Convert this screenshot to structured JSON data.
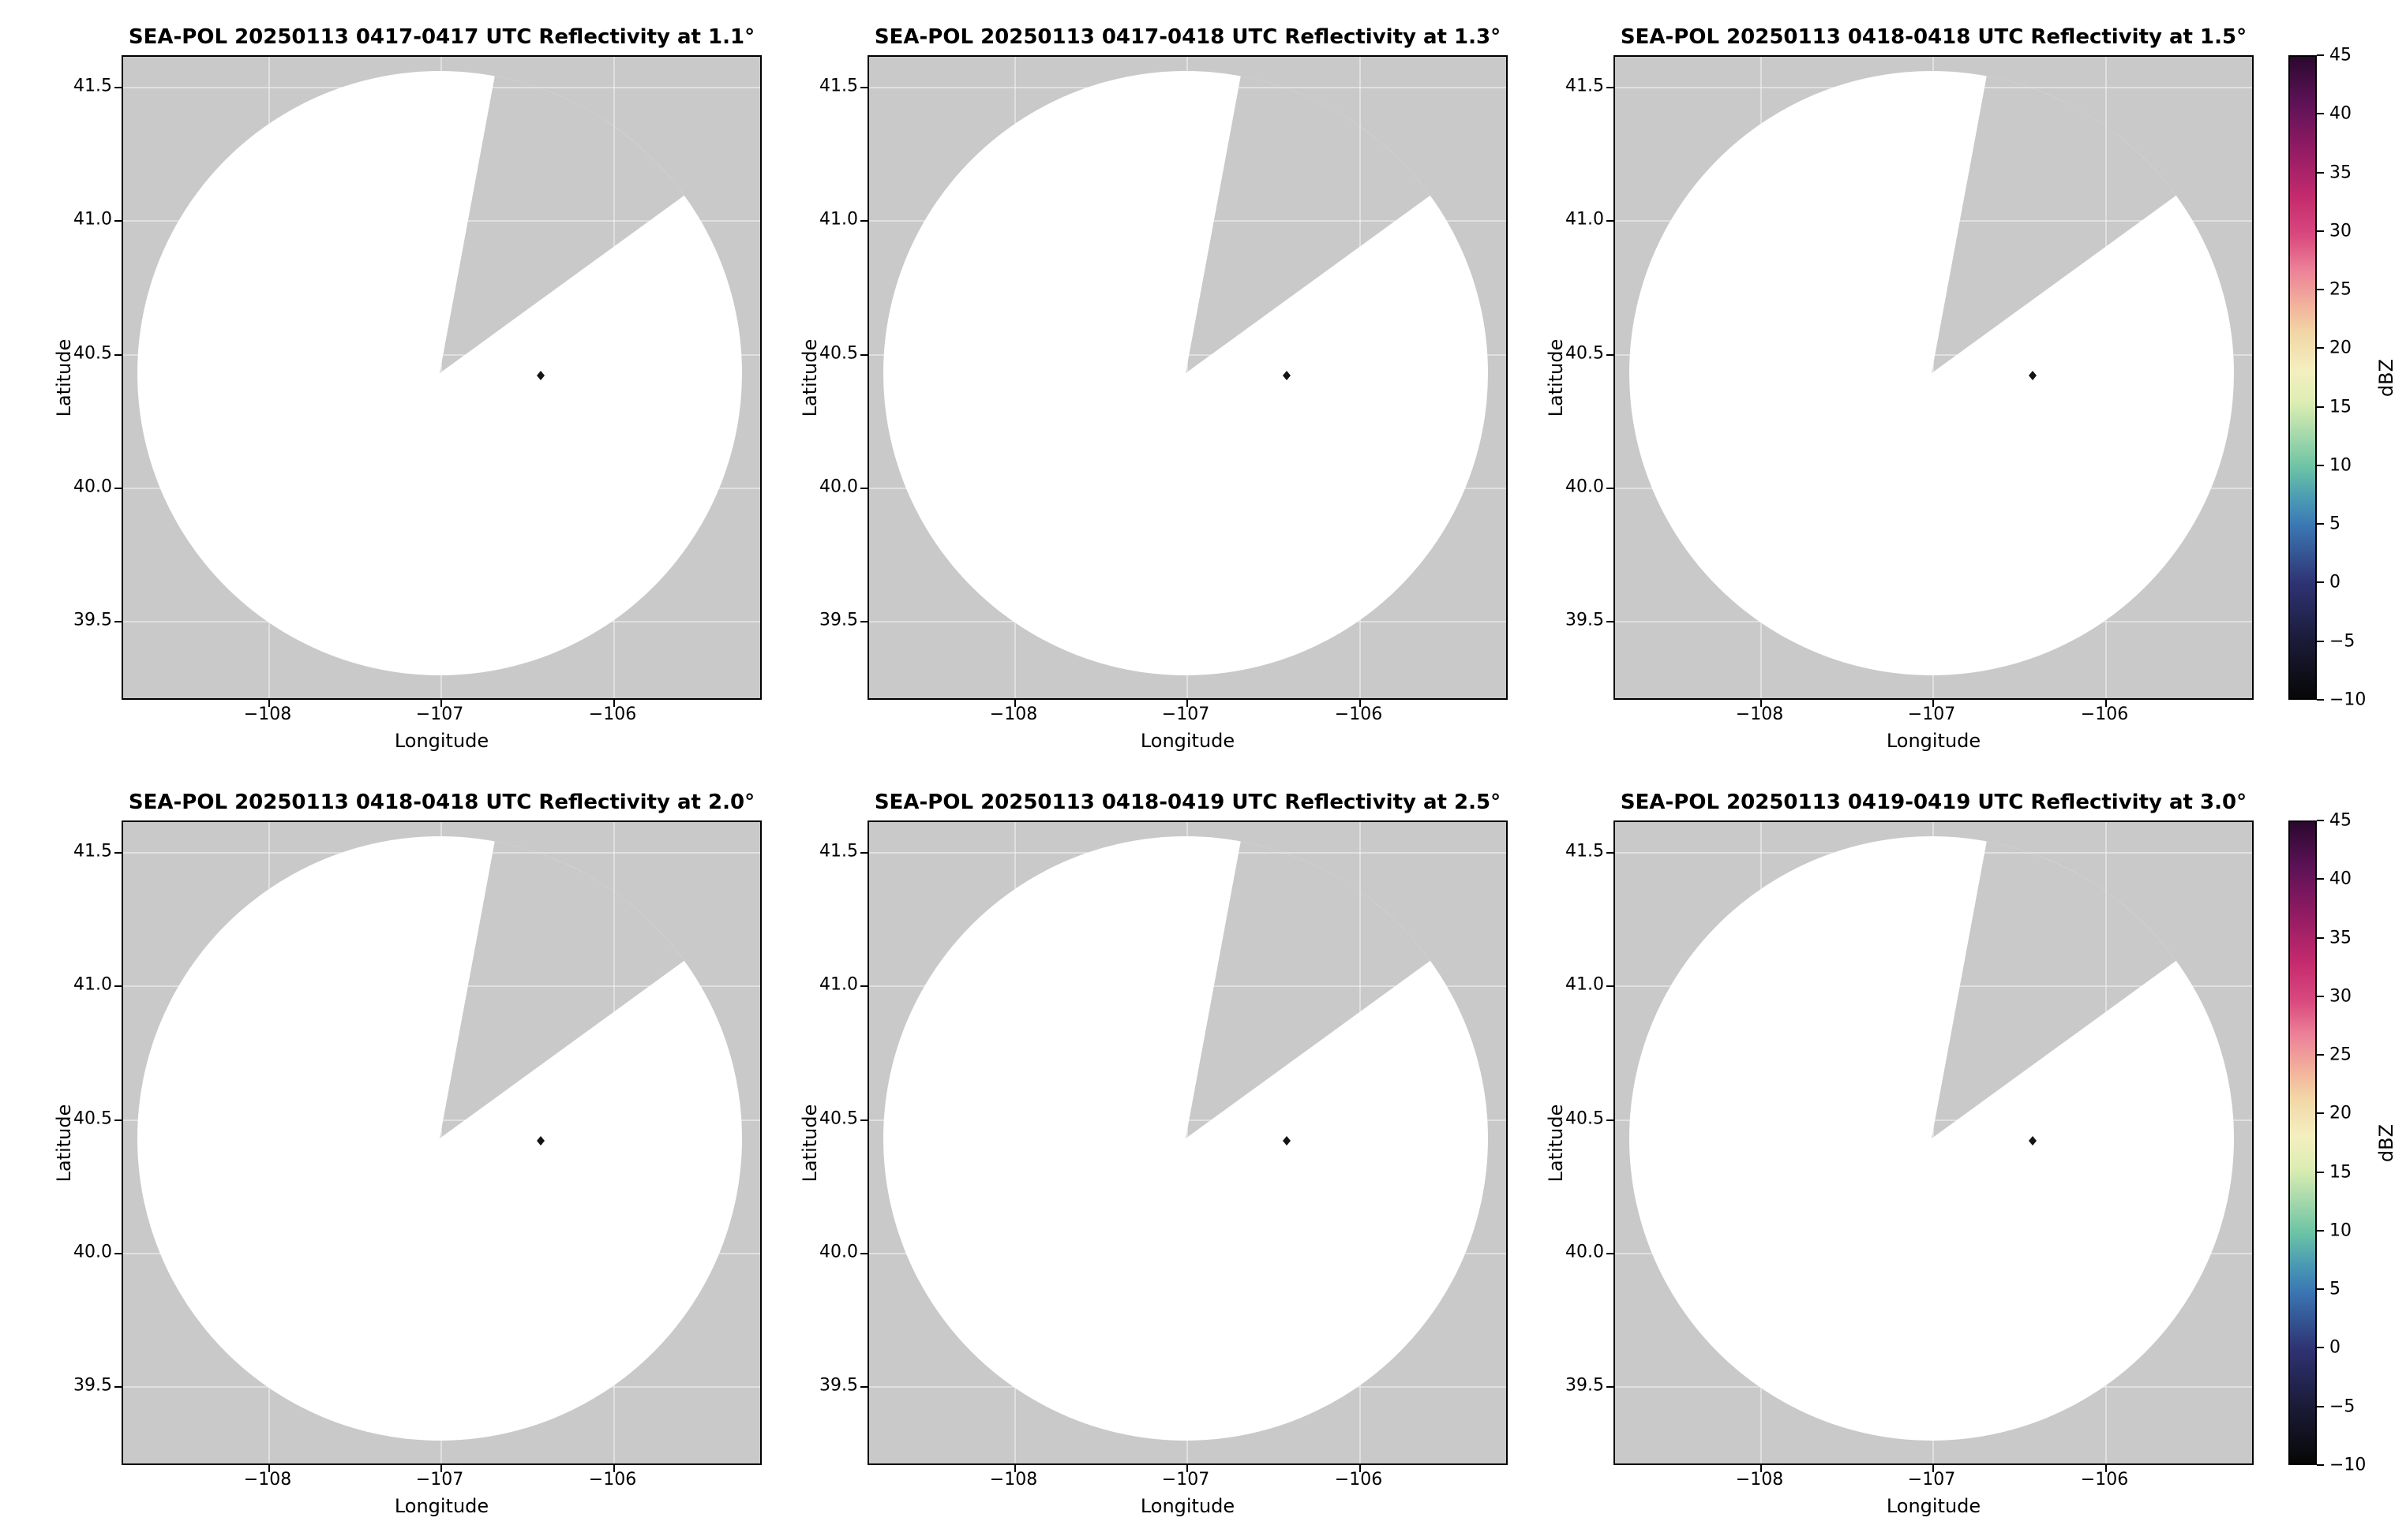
{
  "axes": {
    "xlabel": "Longitude",
    "ylabel": "Latitude",
    "xticks": [
      "−108",
      "−107",
      "−106"
    ],
    "yticks": [
      "41.5",
      "41.0",
      "40.5",
      "40.0",
      "39.5"
    ]
  },
  "colorbar": {
    "label": "dBZ",
    "ticks": [
      "45",
      "40",
      "35",
      "30",
      "25",
      "20",
      "15",
      "10",
      "5",
      "0",
      "−5",
      "−10"
    ]
  },
  "chart_data": {
    "type": "heatmap",
    "subtype": "radar PPI reflectivity maps",
    "grid": "2 rows x 3 columns of panels, one shared vertical colorbar per row",
    "panels": [
      {
        "title": "SEA-POL 20250113 0417-0417 UTC Reflectivity at 1.1°",
        "radar": "SEA-POL",
        "date": "20250113",
        "time_utc": "0417-0417",
        "elevation_deg": 1.1
      },
      {
        "title": "SEA-POL 20250113 0417-0418 UTC Reflectivity at 1.3°",
        "radar": "SEA-POL",
        "date": "20250113",
        "time_utc": "0417-0418",
        "elevation_deg": 1.3
      },
      {
        "title": "SEA-POL 20250113 0418-0418 UTC Reflectivity at 1.5°",
        "radar": "SEA-POL",
        "date": "20250113",
        "time_utc": "0418-0418",
        "elevation_deg": 1.5
      },
      {
        "title": "SEA-POL 20250113 0418-0418 UTC Reflectivity at 2.0°",
        "radar": "SEA-POL",
        "date": "20250113",
        "time_utc": "0418-0418",
        "elevation_deg": 2.0
      },
      {
        "title": "SEA-POL 20250113 0418-0419 UTC Reflectivity at 2.5°",
        "radar": "SEA-POL",
        "date": "20250113",
        "time_utc": "0418-0419",
        "elevation_deg": 2.5
      },
      {
        "title": "SEA-POL 20250113 0419-0419 UTC Reflectivity at 3.0°",
        "radar": "SEA-POL",
        "date": "20250113",
        "time_utc": "0419-0419",
        "elevation_deg": 3.0
      }
    ],
    "xlabel": "Longitude",
    "ylabel": "Latitude",
    "xlim": [
      -108.75,
      -105.7
    ],
    "ylim": [
      39.3,
      41.6
    ],
    "xticks": [
      -108,
      -107,
      -106
    ],
    "yticks": [
      41.5,
      41.0,
      40.5,
      40.0,
      39.5
    ],
    "colorbar": {
      "label": "dBZ",
      "min": -10,
      "max": 45,
      "tick_step": 5,
      "colormap": "dark-black → indigo → blue → teal → pale-yellow → pink → magenta → dark-purple (ChaseSpectral-like)"
    },
    "radar_coverage": {
      "center_lon": -107.02,
      "center_lat": 40.43,
      "coverage_radius_deg_lat": 1.13,
      "missing_sector_azimuth_deg": [
        10,
        55
      ],
      "note": "White disk = scanned area; light-gray = no data, including a pie-slice sector from the radar toward the north-northeast"
    },
    "data_points": [
      {
        "lon": -106.43,
        "lat": 40.44,
        "value_dbz": -10,
        "note": "single tiny dark low-dBZ pixel visible near center-east in every panel"
      }
    ],
    "colors": {
      "no_data_gray": "#c9c9c9",
      "scanned_white": "#ffffff",
      "figure_background": "#ffffff"
    },
    "grid_on": false,
    "legend": "colorbar on right of each row"
  }
}
